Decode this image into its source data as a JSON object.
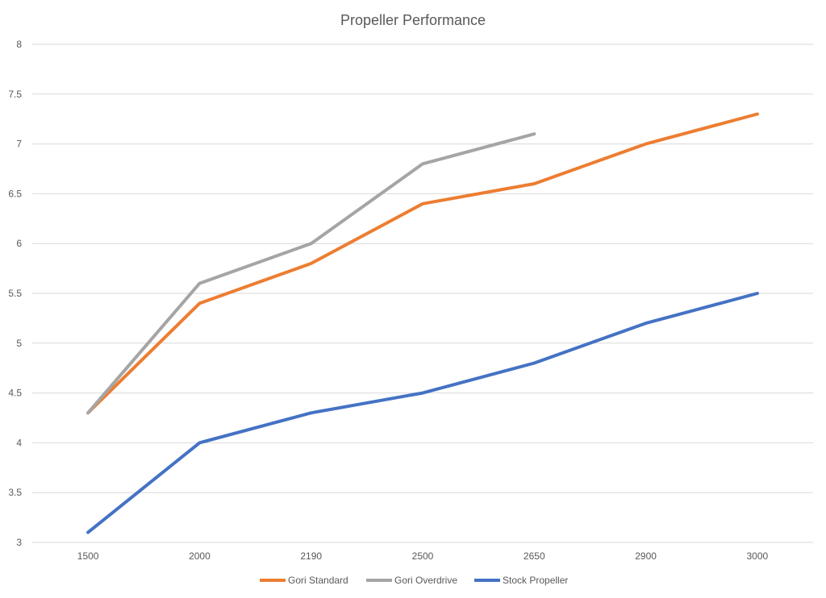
{
  "chart_data": {
    "type": "line",
    "title": "Propeller Performance",
    "xlabel": "",
    "ylabel": "",
    "categories": [
      "1500",
      "2000",
      "2190",
      "2500",
      "2650",
      "2900",
      "3000"
    ],
    "ylim": [
      3,
      8
    ],
    "yticks": [
      "3",
      "3.5",
      "4",
      "4.5",
      "5",
      "5.5",
      "6",
      "6.5",
      "7",
      "7.5",
      "8"
    ],
    "grid": true,
    "legend_position": "bottom",
    "series": [
      {
        "name": "Gori Standard",
        "color": "#ed7d31",
        "values": [
          4.3,
          5.4,
          5.8,
          6.4,
          6.6,
          7.0,
          7.3
        ]
      },
      {
        "name": "Gori Overdrive",
        "color": "#a5a5a5",
        "values": [
          4.3,
          5.6,
          6.0,
          6.8,
          7.1,
          null,
          null
        ]
      },
      {
        "name": "Stock Propeller",
        "color": "#4472c4",
        "values": [
          3.1,
          4.0,
          4.3,
          4.5,
          4.8,
          5.2,
          5.5
        ]
      }
    ]
  }
}
